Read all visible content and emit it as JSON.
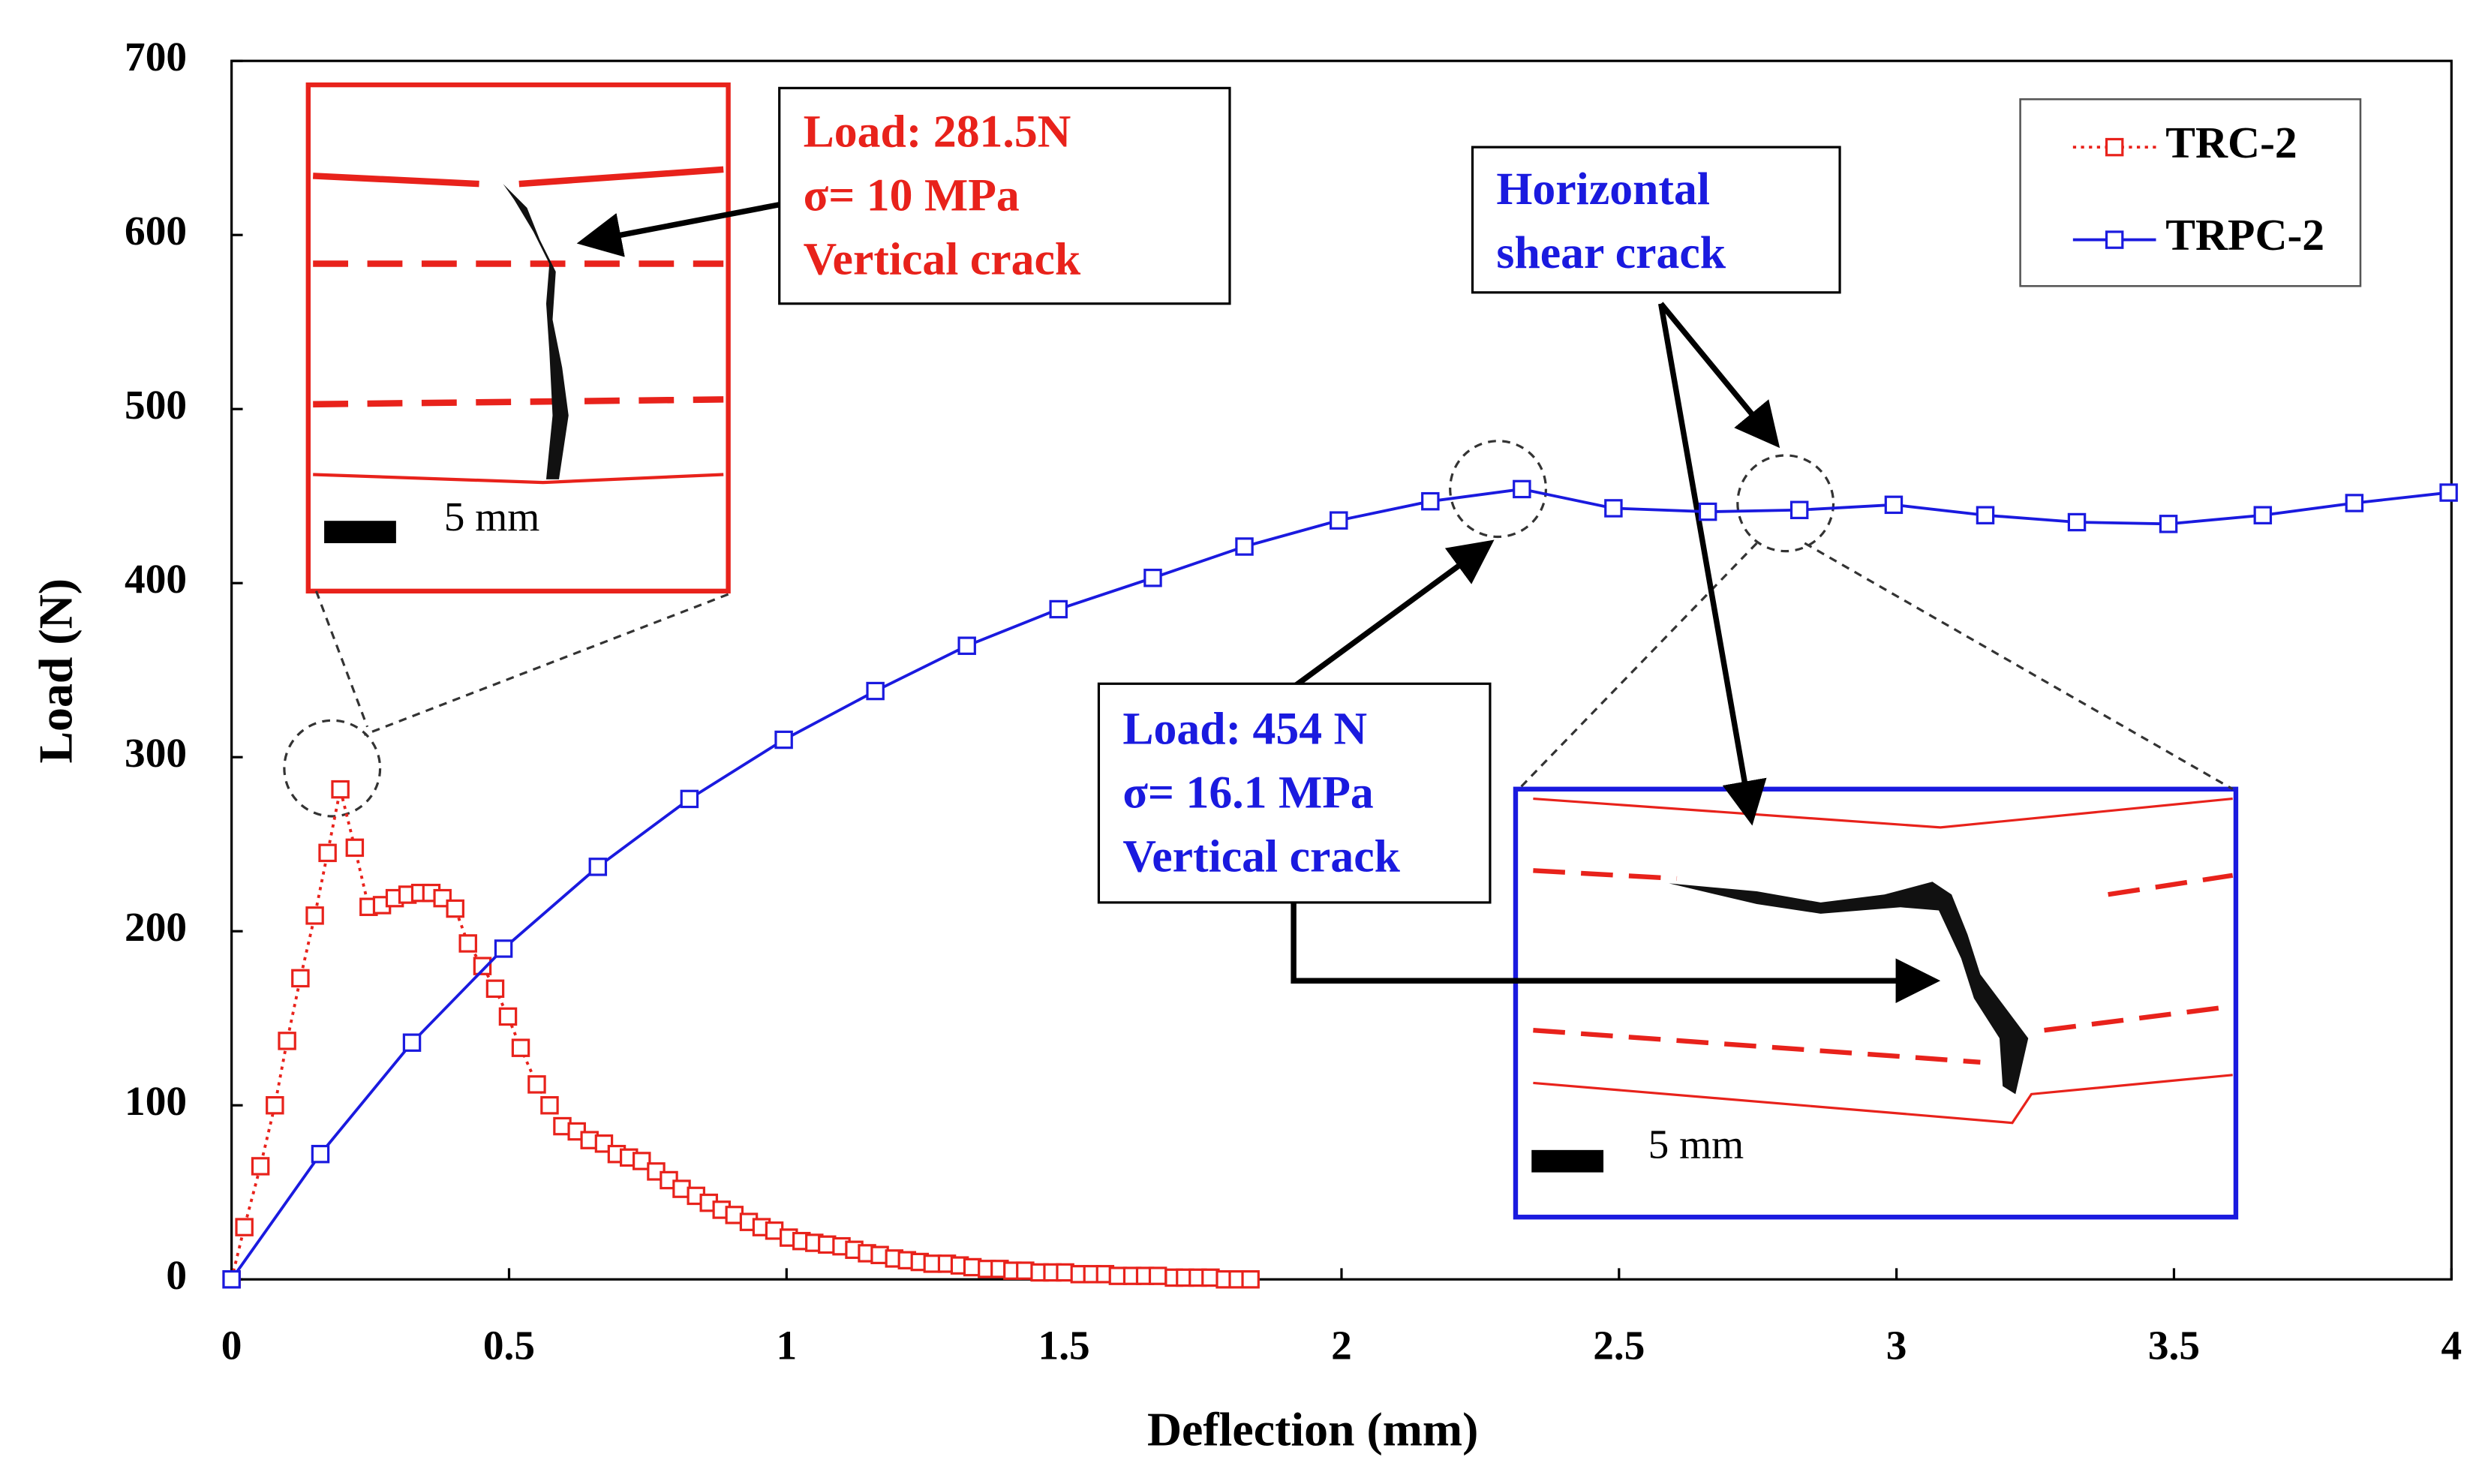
{
  "chart_data": {
    "type": "line",
    "xlabel": "Deflection (mm)",
    "ylabel": "Load (N)",
    "xlim": [
      0,
      4
    ],
    "ylim": [
      0,
      700
    ],
    "xticks": [
      0,
      0.5,
      1,
      1.5,
      2,
      2.5,
      3,
      3.5,
      4
    ],
    "yticks": [
      0,
      100,
      200,
      300,
      400,
      500,
      600,
      700
    ],
    "legend": "upper right",
    "series": [
      {
        "name": "TRC-2",
        "color": "#e8221b",
        "line_style": "dotted",
        "marker": "square",
        "x": [
          0,
          0.023,
          0.052,
          0.078,
          0.1,
          0.124,
          0.15,
          0.173,
          0.196,
          0.222,
          0.247,
          0.271,
          0.294,
          0.317,
          0.34,
          0.36,
          0.38,
          0.403,
          0.426,
          0.452,
          0.475,
          0.498,
          0.521,
          0.55,
          0.573,
          0.596,
          0.622,
          0.645,
          0.671,
          0.694,
          0.716,
          0.739,
          0.765,
          0.788,
          0.811,
          0.837,
          0.86,
          0.883,
          0.906,
          0.932,
          0.955,
          0.978,
          1.004,
          1.027,
          1.05,
          1.073,
          1.099,
          1.122,
          1.145,
          1.168,
          1.194,
          1.217,
          1.24,
          1.263,
          1.289,
          1.312,
          1.335,
          1.361,
          1.384,
          1.407,
          1.43,
          1.456,
          1.479,
          1.502,
          1.528,
          1.551,
          1.574,
          1.597,
          1.623,
          1.646,
          1.669,
          1.698,
          1.718,
          1.741,
          1.764,
          1.79,
          1.813,
          1.836
        ],
        "values": [
          0,
          30,
          65,
          100,
          137,
          173,
          209,
          245,
          281.5,
          248,
          214,
          215,
          219,
          221,
          222,
          222,
          219,
          213,
          193,
          180,
          167,
          151,
          133,
          112,
          100,
          88,
          85,
          80,
          78,
          72,
          70,
          68,
          62,
          57,
          52,
          48,
          44,
          40,
          37,
          33,
          30,
          28,
          24,
          22,
          21,
          20,
          19,
          17,
          15,
          14,
          12,
          11,
          10,
          9,
          9,
          8,
          7,
          6,
          6,
          5,
          5,
          4,
          4,
          4,
          3,
          3,
          3,
          2,
          2,
          2,
          2,
          1,
          1,
          1,
          1,
          0,
          0,
          0
        ]
      },
      {
        "name": "TRPC-2",
        "color": "#1a1adf",
        "line_style": "solid",
        "marker": "square",
        "x": [
          0,
          0.16,
          0.325,
          0.49,
          0.66,
          0.825,
          0.995,
          1.16,
          1.325,
          1.49,
          1.66,
          1.825,
          1.995,
          2.16,
          2.325,
          2.49,
          2.66,
          2.825,
          2.995,
          3.16,
          3.325,
          3.49,
          3.66,
          3.825,
          3.995
        ],
        "values": [
          0,
          72,
          136,
          190,
          237,
          276,
          310,
          338,
          364,
          385,
          403,
          421,
          436,
          447,
          454,
          443,
          441,
          442,
          445,
          439,
          435,
          434,
          439,
          446,
          452
        ]
      }
    ],
    "annotations": [
      {
        "text": [
          "Load: 281.5N",
          "σ= 10 MPa",
          "Vertical crack"
        ],
        "color": "#e8221b"
      },
      {
        "text": [
          "Horizontal",
          "shear crack"
        ],
        "color": "#1a1adf"
      },
      {
        "text": [
          "Load: 454 N",
          "σ= 16.1 MPa",
          "Vertical crack"
        ],
        "color": "#1a1adf"
      }
    ],
    "scale_labels": [
      "5 mm",
      "5 mm"
    ]
  }
}
